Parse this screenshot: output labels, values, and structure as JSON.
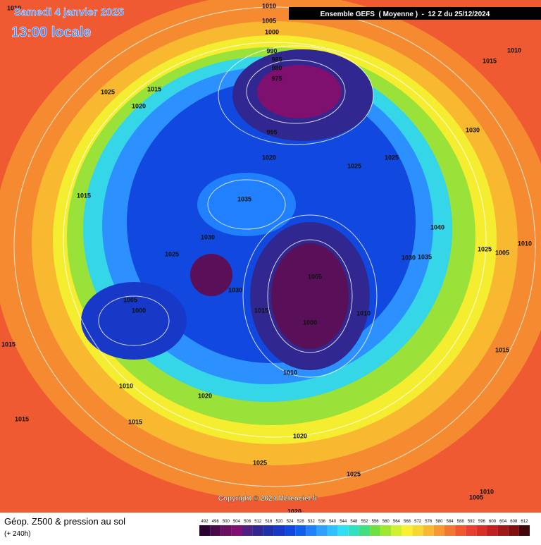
{
  "header": {
    "date": "Samedi 4 janvier 2025",
    "time": "13:00 locale",
    "run": "Ensemble GEFS  ( Moyenne )  -  12 Z du 25/12/2024"
  },
  "map": {
    "isobar_labels": [
      1010,
      1010,
      1005,
      1000,
      990,
      985,
      980,
      975,
      1010,
      1015,
      1025,
      1015,
      1020,
      1030,
      995,
      1020,
      1025,
      1025,
      1015,
      1035,
      1040,
      1030,
      1025,
      1025,
      1005,
      1010,
      1030,
      1035,
      1005,
      1030,
      1005,
      1000,
      1015,
      1010,
      1000,
      1015,
      1015,
      1010,
      1010,
      1020,
      1015,
      1015,
      1020,
      1025,
      1025,
      1010,
      1005,
      1020
    ],
    "copyright": "Copyright © 2024 Meteociel.fr"
  },
  "footer": {
    "title": "Géop. Z500 & pression au sol",
    "subtitle": "(+ 240h)"
  },
  "colorbar": {
    "values": [
      492,
      496,
      500,
      504,
      508,
      512,
      516,
      520,
      524,
      528,
      532,
      536,
      540,
      544,
      548,
      552,
      556,
      560,
      564,
      568,
      572,
      576,
      580,
      584,
      588,
      592,
      596,
      600,
      604,
      608,
      612
    ],
    "colors": [
      "#2a0030",
      "#4a0a4a",
      "#6a1060",
      "#801070",
      "#502080",
      "#302890",
      "#2030a8",
      "#1838c8",
      "#1048e0",
      "#1060f0",
      "#2080ff",
      "#30a0ff",
      "#30c0ff",
      "#30e0f0",
      "#30e0c0",
      "#40e080",
      "#70e040",
      "#a0e830",
      "#d0f030",
      "#f8f030",
      "#f8d830",
      "#f8b830",
      "#f89830",
      "#f07830",
      "#f05830",
      "#e84030",
      "#d83028",
      "#c02020",
      "#a01818",
      "#801010",
      "#400808"
    ]
  }
}
